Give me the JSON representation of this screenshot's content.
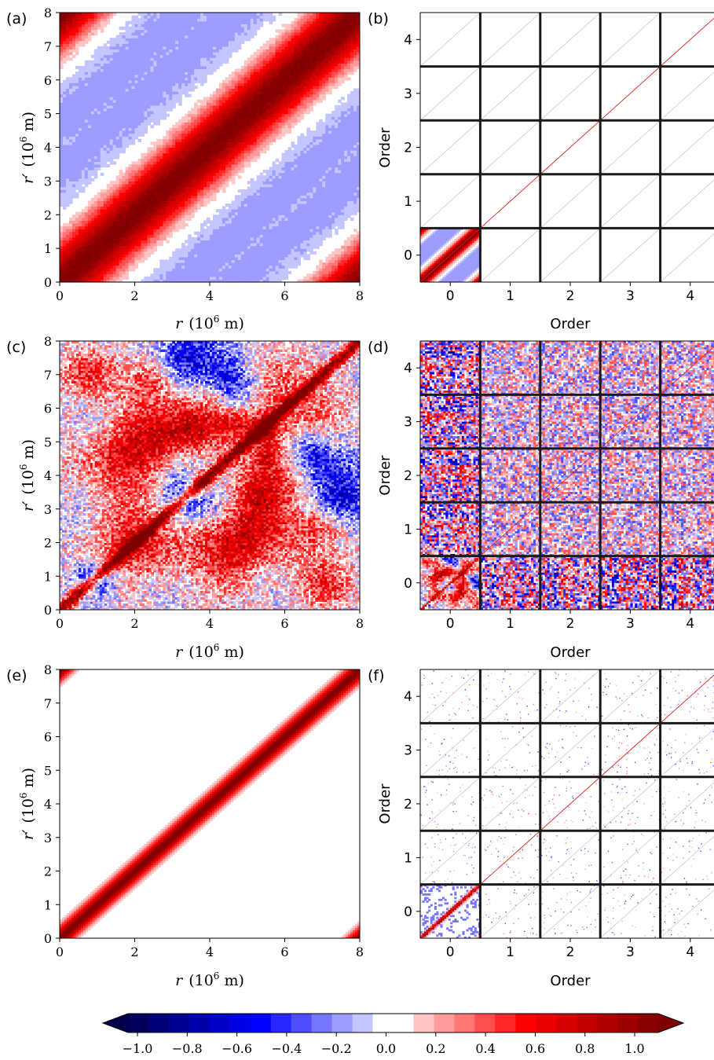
{
  "chart_data": [
    {
      "panel": "(a)",
      "type": "heatmap",
      "xlabel_main": "r",
      "xlabel_unit": "(10",
      "xlabel_exp": "6",
      "xlabel_tail": " m)",
      "ylabel_main": "r′",
      "ylabel_unit": "(10",
      "ylabel_exp": "6",
      "ylabel_tail": " m)",
      "xlim": [
        0,
        8
      ],
      "ylim": [
        0,
        8
      ],
      "xticks": [
        "0",
        "2",
        "4",
        "6",
        "8"
      ],
      "yticks": [
        "0",
        "1",
        "2",
        "3",
        "4",
        "5",
        "6",
        "7",
        "8"
      ],
      "pattern": "periodic smooth correlation: 1.0 on diagonal, decaying to about -0.2 at distance ~4, wrapping at r=8",
      "diag_value": 1.0,
      "min_value": -0.2
    },
    {
      "panel": "(b)",
      "type": "heatmap",
      "xlabel": "Order",
      "ylabel": "Order",
      "xlim": [
        -0.5,
        4.5
      ],
      "ylim": [
        -0.5,
        4.5
      ],
      "xticks": [
        "0",
        "1",
        "2",
        "3",
        "4"
      ],
      "yticks": [
        "0",
        "1",
        "2",
        "3",
        "4"
      ],
      "block_boundaries": [
        0.5,
        1.5,
        2.5,
        3.5
      ],
      "pattern": "block covariance; order-0 block holds the smooth field, higher blocks near-zero with thin diagonal"
    },
    {
      "panel": "(c)",
      "type": "heatmap",
      "xlabel_main": "r",
      "xlabel_unit": "(10",
      "xlabel_exp": "6",
      "xlabel_tail": " m)",
      "ylabel_main": "r′",
      "ylabel_unit": "(10",
      "ylabel_exp": "6",
      "ylabel_tail": " m)",
      "xlim": [
        0,
        8
      ],
      "ylim": [
        0,
        8
      ],
      "xticks": [
        "0",
        "2",
        "4",
        "6",
        "8"
      ],
      "yticks": [
        "0",
        "1",
        "2",
        "3",
        "4",
        "5",
        "6",
        "7",
        "8"
      ],
      "pattern": "noisy sampled correlation, strong red diagonal with large red/blue patches"
    },
    {
      "panel": "(d)",
      "type": "heatmap",
      "xlabel": "Order",
      "ylabel": "Order",
      "xlim": [
        -0.5,
        4.5
      ],
      "ylim": [
        -0.5,
        4.5
      ],
      "xticks": [
        "0",
        "1",
        "2",
        "3",
        "4"
      ],
      "yticks": [
        "0",
        "1",
        "2",
        "3",
        "4"
      ],
      "block_boundaries": [
        0.5,
        1.5,
        2.5,
        3.5
      ],
      "pattern": "noisy block covariance, strong order-0 block"
    },
    {
      "panel": "(e)",
      "type": "heatmap",
      "xlabel_main": "r",
      "xlabel_unit": "(10",
      "xlabel_exp": "6",
      "xlabel_tail": " m)",
      "ylabel_main": "r′",
      "ylabel_unit": "(10",
      "ylabel_exp": "6",
      "ylabel_tail": " m)",
      "xlim": [
        0,
        8
      ],
      "ylim": [
        0,
        8
      ],
      "xticks": [
        "0",
        "2",
        "4",
        "6",
        "8"
      ],
      "yticks": [
        "0",
        "1",
        "2",
        "3",
        "4",
        "5",
        "6",
        "7",
        "8"
      ],
      "pattern": "localized correlation, narrow red diagonal band only",
      "diag_value": 1.0
    },
    {
      "panel": "(f)",
      "type": "heatmap",
      "xlabel": "Order",
      "ylabel": "Order",
      "xlim": [
        -0.5,
        4.5
      ],
      "ylim": [
        -0.5,
        4.5
      ],
      "xticks": [
        "0",
        "1",
        "2",
        "3",
        "4"
      ],
      "yticks": [
        "0",
        "1",
        "2",
        "3",
        "4"
      ],
      "block_boundaries": [
        0.5,
        1.5,
        2.5,
        3.5
      ],
      "pattern": "localized block covariance, sparse faint off-diagonal speckle"
    }
  ],
  "colorbar": {
    "vmin": -1.0,
    "vmax": 1.0,
    "levels": 26,
    "extend": "both",
    "ticks": [
      "−1.0",
      "−0.8",
      "−0.6",
      "−0.4",
      "−0.2",
      "0.0",
      "0.2",
      "0.4",
      "0.6",
      "0.8",
      "1.0"
    ],
    "tick_values": [
      -1.0,
      -0.8,
      -0.6,
      -0.4,
      -0.2,
      0.0,
      0.2,
      0.4,
      0.6,
      0.8,
      1.0
    ],
    "colormap": "seismic",
    "color_low": "#00004c",
    "color_mid": "#ffffff",
    "color_high": "#800000"
  },
  "frame_color": "#000000",
  "block_line_color": "#1a1a1a"
}
